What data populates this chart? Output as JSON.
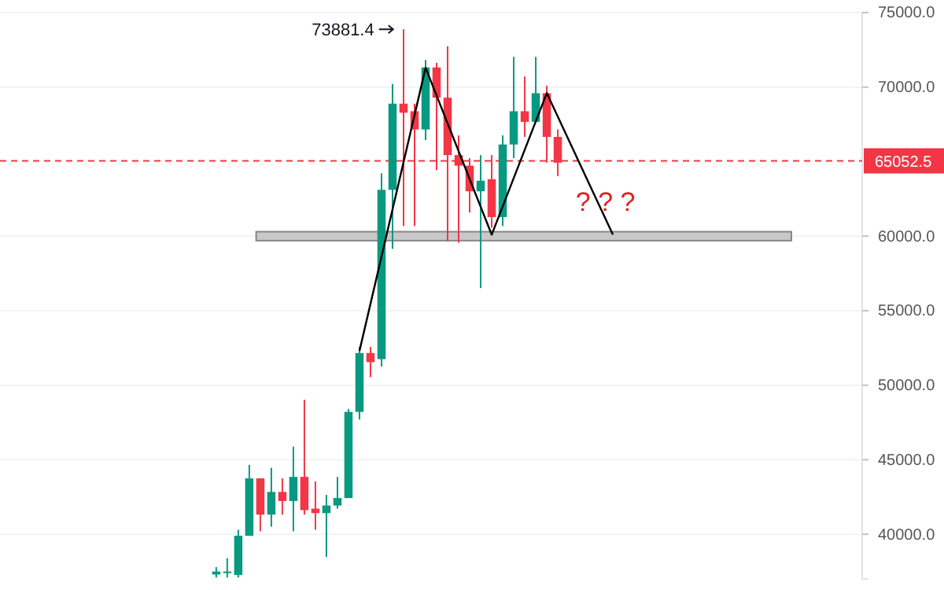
{
  "chart_data": {
    "type": "candlestick",
    "categories": [
      null,
      null,
      null,
      null,
      null,
      null,
      null,
      null,
      null,
      null,
      null,
      null,
      null,
      null,
      null,
      null,
      null,
      null,
      null,
      null,
      null,
      null,
      null,
      null,
      null,
      null,
      null,
      null,
      null,
      null,
      null,
      null,
      null,
      null,
      null,
      null,
      null,
      null,
      null,
      null,
      null,
      null,
      null,
      null,
      null,
      null,
      null,
      null,
      null,
      null,
      null,
      null,
      null,
      null,
      null,
      null,
      null,
      null,
      null,
      null,
      null,
      null,
      null,
      null,
      null,
      null,
      null,
      null,
      null,
      null,
      null,
      null,
      null,
      null,
      null,
      null,
      null,
      null
    ],
    "ohlc": [
      null,
      null,
      null,
      null,
      null,
      null,
      null,
      null,
      null,
      null,
      null,
      null,
      null,
      null,
      null,
      null,
      null,
      null,
      null,
      [
        37300,
        37800,
        37100,
        37500
      ],
      [
        37400,
        38400,
        37100,
        37500
      ],
      [
        37270,
        40300,
        37100,
        39900
      ],
      [
        39900,
        44660,
        39900,
        43750
      ],
      [
        43750,
        43750,
        40200,
        41320
      ],
      [
        41320,
        44460,
        40510,
        42840
      ],
      [
        42840,
        43750,
        41320,
        42230
      ],
      [
        42230,
        45880,
        40200,
        43850
      ],
      [
        43850,
        49020,
        41320,
        41620
      ],
      [
        41720,
        43550,
        40300,
        41420
      ],
      [
        41420,
        42640,
        38480,
        41930
      ],
      [
        41930,
        43850,
        41720,
        42430
      ],
      [
        42430,
        48410,
        42430,
        48210
      ],
      [
        48210,
        52570,
        47700,
        52160
      ],
      [
        52160,
        52570,
        50540,
        51550
      ],
      [
        51750,
        64220,
        51250,
        63110
      ],
      [
        63110,
        70200,
        59150,
        68890
      ],
      [
        68890,
        73881.4,
        60680,
        68280
      ],
      [
        68380,
        68890,
        60680,
        67160
      ],
      [
        67160,
        71820,
        66450,
        71320
      ],
      [
        71320,
        71620,
        64430,
        69290
      ],
      [
        69290,
        72740,
        59660,
        65440
      ],
      [
        65440,
        66760,
        59560,
        64730
      ],
      [
        64730,
        65230,
        61590,
        63010
      ],
      [
        63010,
        65440,
        56520,
        63720
      ],
      [
        63820,
        65440,
        60570,
        61280
      ],
      [
        61280,
        66760,
        60680,
        66150
      ],
      [
        66150,
        72030,
        65230,
        68380
      ],
      [
        68380,
        70710,
        66660,
        67670
      ],
      [
        67670,
        72030,
        67670,
        69590
      ],
      [
        69590,
        70100,
        64930,
        66660
      ],
      [
        66660,
        67160,
        64020,
        64930
      ],
      null,
      null,
      null,
      null,
      null,
      null,
      null,
      null,
      null,
      null,
      null,
      null,
      null,
      null,
      null,
      null,
      null,
      null,
      null,
      null,
      null,
      null,
      null,
      null,
      null,
      null,
      null
    ],
    "series": [
      {
        "type": "line",
        "color": "#000000",
        "values": [
          null,
          null,
          null,
          null,
          null,
          null,
          null,
          null,
          null,
          null,
          null,
          null,
          null,
          null,
          null,
          null,
          null,
          null,
          null,
          null,
          null,
          null,
          null,
          null,
          null,
          null,
          null,
          null,
          null,
          null,
          null,
          null,
          52300,
          null,
          null,
          null,
          null,
          null,
          71300,
          null,
          null,
          null,
          null,
          null,
          60100,
          null,
          null,
          null,
          null,
          69600,
          null,
          null,
          null,
          null,
          null,
          60100,
          null,
          null,
          null,
          null,
          null,
          null,
          null,
          null,
          null,
          null,
          null,
          null,
          null,
          null,
          null,
          null,
          null,
          null,
          null,
          null,
          null,
          null
        ]
      }
    ],
    "ylim": [
      37000,
      75000
    ],
    "yticks": [
      {
        "value": 40000,
        "label": "40000.0"
      },
      {
        "value": 45000,
        "label": "45000.0"
      },
      {
        "value": 50000,
        "label": "50000.0"
      },
      {
        "value": 55000,
        "label": "55000.0"
      },
      {
        "value": 60000,
        "label": "60000.0"
      },
      {
        "value": 70000,
        "label": "70000.0"
      },
      {
        "value": 75000,
        "label": "75000.0"
      }
    ],
    "grid": "y",
    "tick_labels": "y",
    "ref_lines": [
      {
        "axis": "y",
        "value": 65052.5,
        "label": "65052.5",
        "color": "#f23645",
        "line_style": "dashed"
      }
    ],
    "bands": [
      {
        "axis": "y",
        "from": 59700,
        "to": 60300,
        "color": "#c8c8c8"
      }
    ],
    "annotations": [
      "73881.4",
      "? ? ?"
    ]
  }
}
